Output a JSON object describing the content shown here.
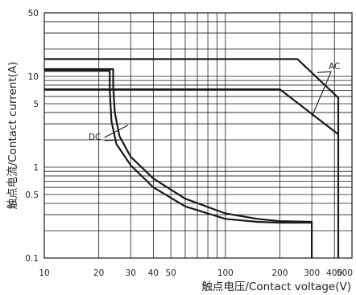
{
  "chart_data": {
    "type": "line",
    "xscale": "log",
    "yscale": "log",
    "xlim": [
      10,
      500
    ],
    "ylim": [
      0.1,
      50
    ],
    "xlabel": "触点电压/Contact voltage(V)",
    "ylabel": "触点电流/Contact current(A)",
    "x_ticks": [
      {
        "value": 10,
        "label": "10"
      },
      {
        "value": 20,
        "label": "20"
      },
      {
        "value": 30,
        "label": "30"
      },
      {
        "value": 40,
        "label": "40"
      },
      {
        "value": 50,
        "label": "50"
      },
      {
        "value": 100,
        "label": "100"
      },
      {
        "value": 200,
        "label": "200"
      },
      {
        "value": 300,
        "label": "300"
      },
      {
        "value": 400,
        "label": "400"
      },
      {
        "value": 500,
        "label": "500"
      }
    ],
    "y_ticks": [
      {
        "value": 0.1,
        "label": "0.1"
      },
      {
        "value": 0.5,
        "label": "0.5"
      },
      {
        "value": 1,
        "label": "1"
      },
      {
        "value": 5,
        "label": "5"
      },
      {
        "value": 10,
        "label": "10"
      },
      {
        "value": 50,
        "label": "50"
      }
    ],
    "grid": true,
    "annotations": [
      {
        "text": "AC",
        "x": 400,
        "y": 12
      },
      {
        "text": "DC",
        "x": 19,
        "y": 2
      }
    ],
    "series": [
      {
        "group": "AC",
        "x": [
          10,
          250,
          420,
          420
        ],
        "y": [
          15.5,
          15.5,
          5.8,
          0.1
        ]
      },
      {
        "group": "AC",
        "x": [
          10,
          200,
          420
        ],
        "y": [
          7.2,
          7.2,
          2.3
        ]
      },
      {
        "group": "DC",
        "x": [
          10,
          24,
          24,
          24.5,
          26,
          30,
          40,
          60,
          100,
          150,
          200,
          300,
          300
        ],
        "y": [
          12,
          12,
          8,
          4,
          2.2,
          1.3,
          0.75,
          0.45,
          0.31,
          0.27,
          0.255,
          0.25,
          0.1
        ]
      },
      {
        "group": "DC",
        "x": [
          10,
          23,
          23,
          23.5,
          25,
          30,
          40,
          60,
          100,
          150,
          200,
          300
        ],
        "y": [
          11.5,
          11.5,
          7,
          3.2,
          1.8,
          1.05,
          0.6,
          0.37,
          0.27,
          0.25,
          0.245,
          0.245
        ]
      }
    ]
  }
}
